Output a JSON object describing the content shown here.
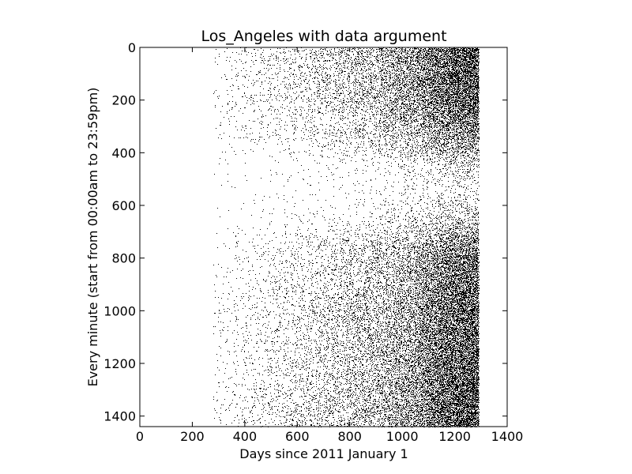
{
  "chart_data": {
    "type": "heatmap",
    "title": "Los_Angeles with data argument",
    "xlabel": "Days since 2011 January 1",
    "ylabel": "Every minute (start from 00:00am to 23:59pm)",
    "xlim": [
      0,
      1400
    ],
    "ylim": [
      1440,
      0
    ],
    "y_inverted": true,
    "x_ticks": [
      "0",
      "200",
      "400",
      "600",
      "800",
      "1000",
      "1200",
      "1400"
    ],
    "y_ticks": [
      "0",
      "200",
      "400",
      "600",
      "800",
      "1000",
      "1200",
      "1400"
    ],
    "data_x_range": [
      280,
      1290
    ],
    "marker_color": "#000000",
    "background_color": "#ffffff",
    "grid": false,
    "density_by_day": [
      {
        "x": 300,
        "density": 0.01
      },
      {
        "x": 500,
        "density": 0.03
      },
      {
        "x": 700,
        "density": 0.06
      },
      {
        "x": 900,
        "density": 0.12
      },
      {
        "x": 1050,
        "density": 0.22
      },
      {
        "x": 1150,
        "density": 0.38
      },
      {
        "x": 1250,
        "density": 0.5
      },
      {
        "x": 1290,
        "density": 0.5
      }
    ],
    "density_by_minute": [
      {
        "y": 0,
        "density": 1.0
      },
      {
        "y": 200,
        "density": 0.9
      },
      {
        "y": 350,
        "density": 0.45
      },
      {
        "y": 450,
        "density": 0.12
      },
      {
        "y": 550,
        "density": 0.08
      },
      {
        "y": 650,
        "density": 0.2
      },
      {
        "y": 800,
        "density": 0.7
      },
      {
        "y": 1000,
        "density": 0.85
      },
      {
        "y": 1200,
        "density": 0.9
      },
      {
        "y": 1440,
        "density": 1.0
      }
    ]
  }
}
